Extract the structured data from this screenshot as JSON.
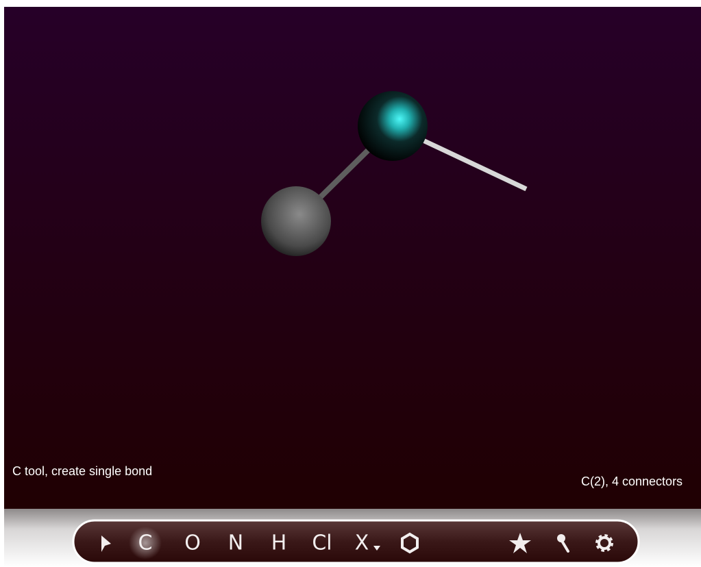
{
  "status": {
    "tool": "C tool, create single bond",
    "selection": "C(2), 4 connectors"
  },
  "toolbar": {
    "elements": [
      "C",
      "O",
      "N",
      "H",
      "Cl",
      "X"
    ]
  }
}
